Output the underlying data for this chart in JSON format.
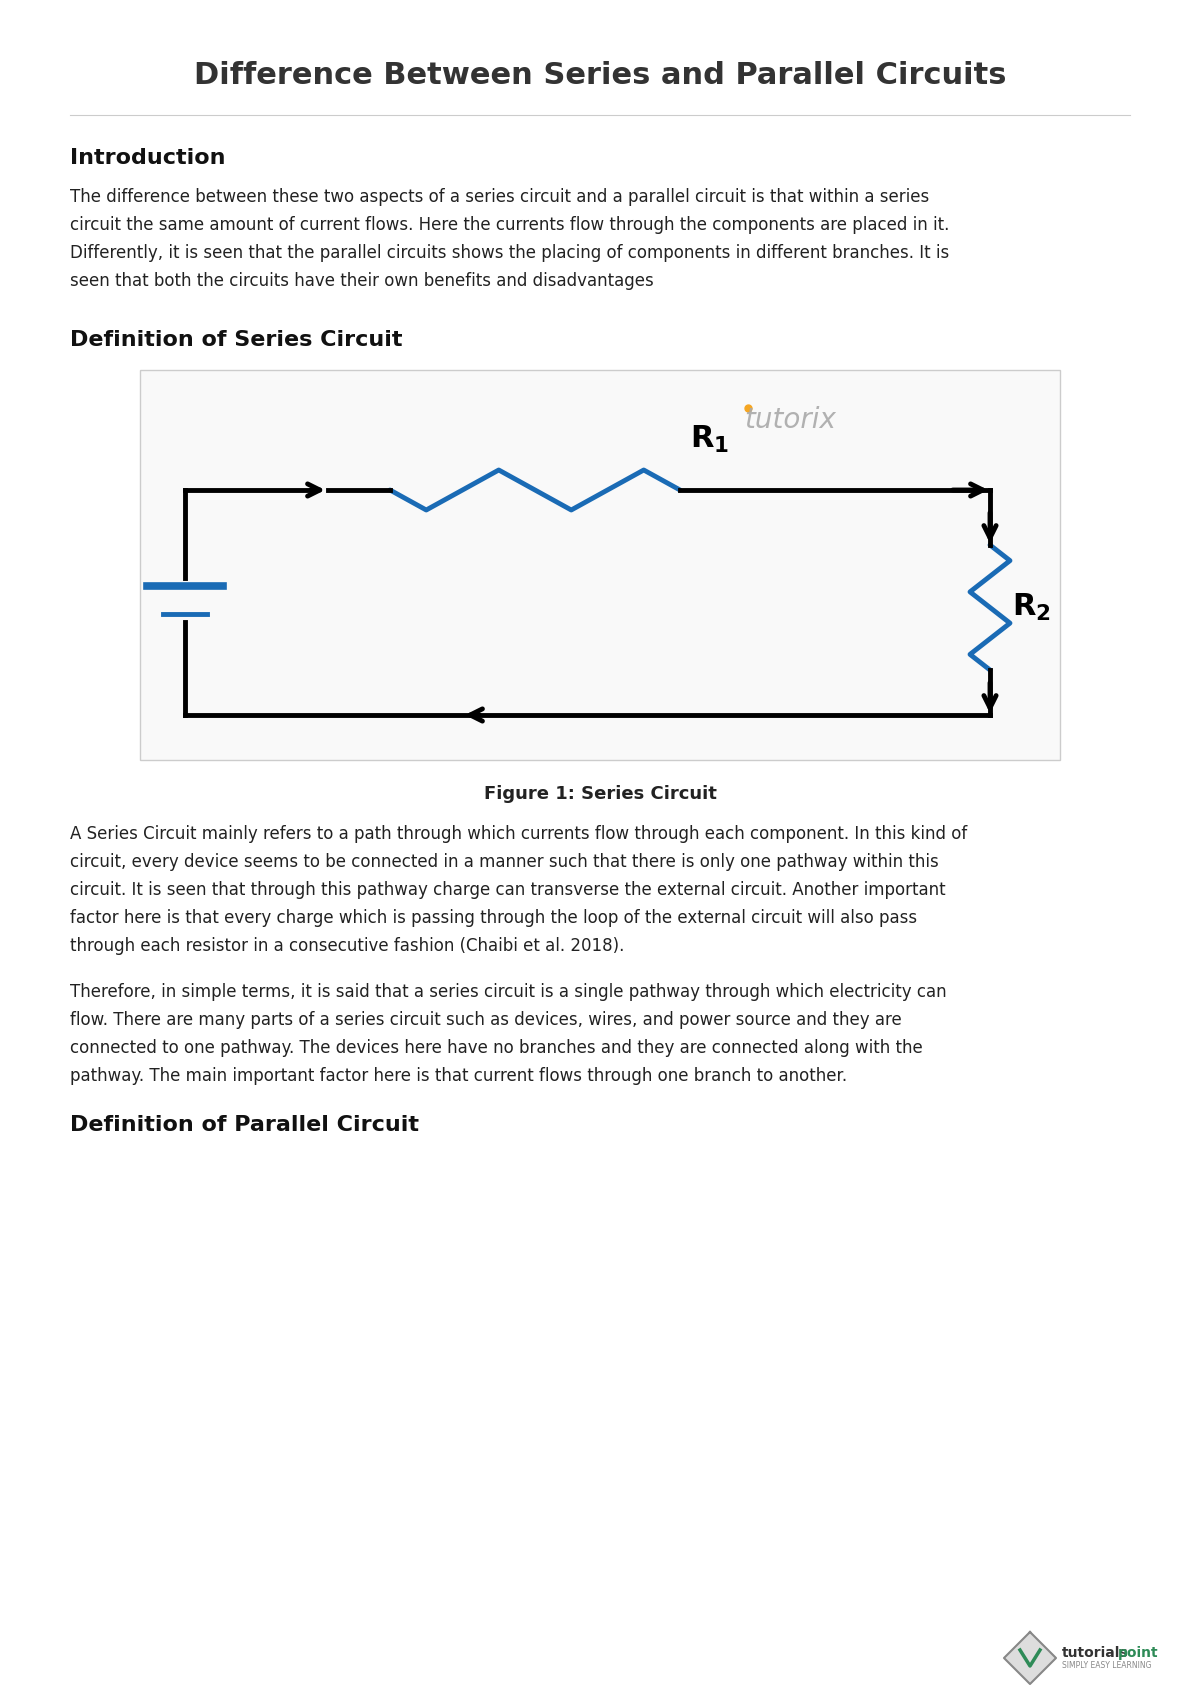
{
  "title": "Difference Between Series and Parallel Circuits",
  "title_fontsize": 22,
  "title_color": "#333333",
  "bg_color": "#ffffff",
  "section1_heading": "Introduction",
  "section1_text": "The difference between these two aspects of a series circuit and a parallel circuit is that within a series\ncircuit the same amount of current flows. Here the currents flow through the components are placed in it.\nDifferently, it is seen that the parallel circuits shows the placing of components in different branches. It is\nseen that both the circuits have their own benefits and disadvantages",
  "section2_heading": "Definition of Series Circuit",
  "figure_caption": "Figure 1: Series Circuit",
  "section2_text1": "A Series Circuit mainly refers to a path through which currents flow through each component. In this kind of\ncircuit, every device seems to be connected in a manner such that there is only one pathway within this\ncircuit. It is seen that through this pathway charge can transverse the external circuit. Another important\nfactor here is that every charge which is passing through the loop of the external circuit will also pass\nthrough each resistor in a consecutive fashion (Chaibi et al. 2018).",
  "section2_text2": "Therefore, in simple terms, it is said that a series circuit is a single pathway through which electricity can\nflow. There are many parts of a series circuit such as devices, wires, and power source and they are\nconnected to one pathway. The devices here have no branches and they are connected along with the\npathway. The main important factor here is that current flows through one branch to another.",
  "section3_heading": "Definition of Parallel Circuit",
  "text_color": "#222222",
  "heading_color": "#111111",
  "circuit_line_color": "#000000",
  "resistor_color": "#1a6bb5",
  "tutorix_color": "#aaaaaa",
  "body_fontsize": 12,
  "heading_fontsize": 16
}
